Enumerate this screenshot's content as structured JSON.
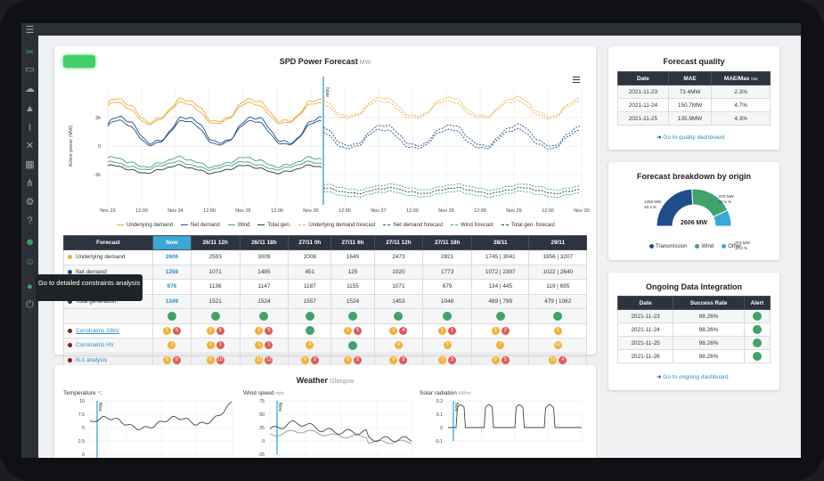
{
  "forecast_card": {
    "title": "SPD Power Forecast",
    "unit": "MW",
    "menu_icon": "hamburger-icon",
    "ylabel": "Active power (MW)",
    "now_label": "Now",
    "y_ticks": [
      "2k",
      "0",
      "-2k"
    ],
    "x_ticks": [
      "Nov 23",
      "12:00",
      "Nov 24",
      "12:00",
      "Nov 25",
      "12:00",
      "Nov 26",
      "12:00",
      "Nov 27",
      "12:00",
      "Nov 28",
      "12:00",
      "Nov 29",
      "12:00",
      "Nov 30"
    ],
    "legend": [
      {
        "label": "Underlying demand",
        "color": "#f2a93b",
        "dashed": false
      },
      {
        "label": "Net demand",
        "color": "#1f4e8c",
        "dashed": false
      },
      {
        "label": "Wind",
        "color": "#3fa36b",
        "dashed": false
      },
      {
        "label": "Total gen.",
        "color": "#2d3440",
        "dashed": false
      },
      {
        "label": "Underlying demand forecast",
        "color": "#f2a93b",
        "dashed": true
      },
      {
        "label": "Net demand forecast",
        "color": "#1f4e8c",
        "dashed": true
      },
      {
        "label": "Wind forecast",
        "color": "#3fa36b",
        "dashed": true
      },
      {
        "label": "Total gen. forecast",
        "color": "#2d3440",
        "dashed": true
      }
    ]
  },
  "forecast_table": {
    "headers": [
      "Forecast",
      "Now",
      "26/11 12h",
      "26/11 18h",
      "27/11 0h",
      "27/11 6h",
      "27/11 12h",
      "27/11 18h",
      "28/11",
      "29/11"
    ],
    "rows": [
      {
        "label": "Underlying demand",
        "dot": "#f2a93b",
        "values": [
          "2606",
          "2593",
          "3009",
          "2008",
          "1649",
          "2473",
          "2821",
          "1745 | 3041",
          "1856 | 3207"
        ]
      },
      {
        "label": "Net demand",
        "dot": "#1f4e8c",
        "values": [
          "1258",
          "1071",
          "1485",
          "451",
          "125",
          "1020",
          "1773",
          "1072 | 2397",
          "1022 | 2640"
        ]
      },
      {
        "label": "Wind generation",
        "dot": "#3fa36b",
        "values": [
          "976",
          "1136",
          "1147",
          "1187",
          "1155",
          "1071",
          "679",
          "134 | 445",
          "119 | 695"
        ]
      },
      {
        "label": "Total generation",
        "dot": "#2d3440",
        "values": [
          "1349",
          "1521",
          "1524",
          "1557",
          "1524",
          "1453",
          "1048",
          "489 | 799",
          "479 | 1062"
        ]
      }
    ],
    "constraint_rows": [
      {
        "label": "Constraints 33kV",
        "dot": "#8b1a1a",
        "cells": [
          [
            "y1",
            "r5"
          ],
          [
            "y2",
            "r5"
          ],
          [
            "y1",
            "r5"
          ],
          [
            "g"
          ],
          [
            "y2",
            "r5"
          ],
          [
            "y1",
            "r4"
          ],
          [
            "y1",
            "r1"
          ],
          [
            "y1",
            "r2"
          ],
          [
            "y1"
          ]
        ]
      },
      {
        "label": "Constraints HV",
        "dot": "#8b1a1a",
        "cells": [
          [
            "y1"
          ],
          [
            "y1",
            "r1"
          ],
          [
            "y1",
            "r1"
          ],
          [
            "y4"
          ],
          [
            "g"
          ],
          [
            "y4"
          ],
          [
            "y3"
          ],
          [
            "y7"
          ],
          [
            "y10"
          ]
        ]
      },
      {
        "label": "N-1 analysis",
        "dot": "#8b1a1a",
        "cells": [
          [
            "y6",
            "r8"
          ],
          [
            "y6",
            "r10"
          ],
          [
            "y11",
            "r12"
          ],
          [
            "y6",
            "r9"
          ],
          [
            "y6",
            "r8"
          ],
          [
            "y6",
            "r8"
          ],
          [
            "y5",
            "r3"
          ],
          [
            "y8",
            "r5"
          ],
          [
            "y11",
            "r4"
          ]
        ]
      }
    ],
    "blank_row_cells": [
      "g",
      "g",
      "g",
      "g",
      "g",
      "g",
      "g",
      "g",
      "g"
    ],
    "tooltip": "Go to detailed constraints analysis"
  },
  "weather_card": {
    "title": "Weather",
    "location": "Glasgow",
    "now_label": "Now",
    "panels": [
      {
        "label": "Temperature",
        "unit": "°C",
        "icon": "thermometer-icon",
        "y_ticks": [
          "10",
          "7.5",
          "5",
          "2.5",
          "0",
          "-2.5"
        ]
      },
      {
        "label": "Wind speed",
        "unit": "mph",
        "icon": "wind-icon",
        "y_ticks": [
          "75",
          "50",
          "25",
          "0",
          "-25"
        ]
      },
      {
        "label": "Solar radiation",
        "unit": "kW/m²",
        "icon": "sun-icon",
        "y_ticks": [
          "0.2",
          "0.1",
          "0",
          "-0.1"
        ]
      }
    ]
  },
  "quality_card": {
    "title": "Forecast quality",
    "headers": [
      "Date",
      "MAE",
      "MAE/Max"
    ],
    "header_suffix": "hist",
    "rows": [
      [
        "2021-11-23",
        "73.4MW",
        "2.3%"
      ],
      [
        "2021-11-24",
        "150.7MW",
        "4.7%"
      ],
      [
        "2021-11-25",
        "135.9MW",
        "4.3%"
      ]
    ],
    "link": "Go to quality dashboard"
  },
  "breakdown_card": {
    "title": "Forecast breakdown by origin",
    "center_label": "2606 MW",
    "slices": [
      {
        "name": "Transmission",
        "value_label": "1258 MW",
        "pct_label": "48.3 %",
        "pct": 48.3,
        "color": "#1f4e8c"
      },
      {
        "name": "Wind",
        "value_label": "976 MW",
        "pct_label": "37.5 %",
        "pct": 37.5,
        "color": "#3fa36b"
      },
      {
        "name": "Other",
        "value_label": "373 MW",
        "pct_label": "14.3 %",
        "pct": 14.3,
        "color": "#3aa7d4"
      }
    ]
  },
  "integration_card": {
    "title": "Ongoing Data Integration",
    "headers": [
      "Date",
      "Success Rate",
      "Alert"
    ],
    "rows": [
      [
        "2021-11-23",
        "98.26%"
      ],
      [
        "2021-11-24",
        "98.26%"
      ],
      [
        "2021-11-25",
        "98.26%"
      ],
      [
        "2021-11-26",
        "98.26%"
      ]
    ],
    "link": "Go to ongoing dashboard"
  },
  "sidebar": {
    "icons": [
      "menu-icon",
      "tools-icon",
      "monitor-icon",
      "weather-icon",
      "warning-icon",
      "chart-icon",
      "wrench-icon",
      "calendar-icon",
      "network-icon",
      "settings-icon",
      "help-icon",
      "users-icon",
      "user-settings-icon",
      "user-icon",
      "power-icon"
    ]
  },
  "colors": {
    "accent": "#3aa7d4",
    "dark": "#2d3440",
    "green": "#3fa36b",
    "yellow": "#f2b233",
    "red": "#e05a5a"
  }
}
